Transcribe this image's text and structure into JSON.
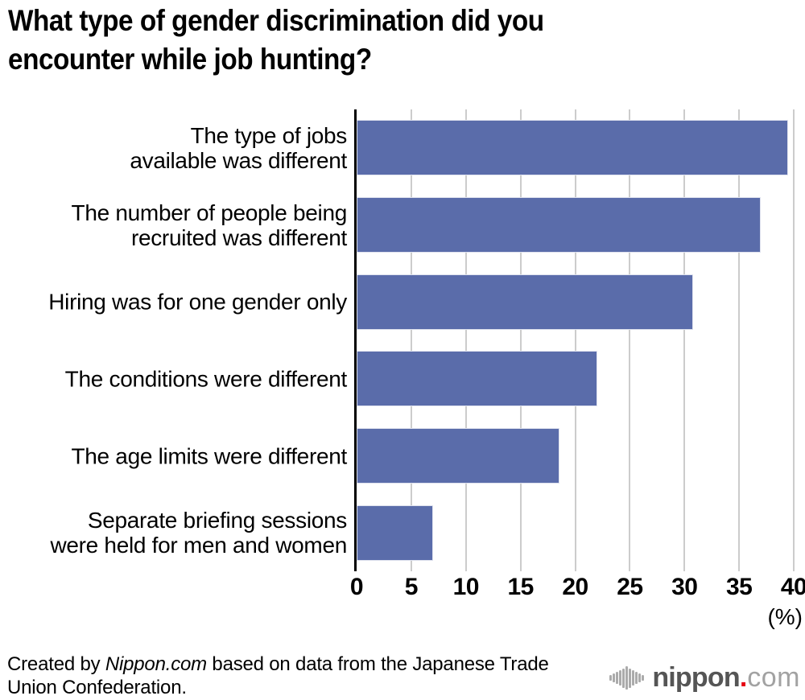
{
  "title": {
    "full": "What type of gender discrimination did you encounter while job hunting?",
    "lines": [
      "What type of gender discrimination did you",
      "encounter while job hunting?"
    ]
  },
  "chart_data": {
    "type": "bar",
    "orientation": "horizontal",
    "title": "What type of gender discrimination did you encounter while job hunting?",
    "categories": [
      "The type of jobs available was different",
      "The number of people being recruited was different",
      "Hiring was for one gender only",
      "The conditions were different",
      "The age limits were different",
      "Separate briefing sessions were held for men and women"
    ],
    "label_lines": [
      [
        "The type of jobs",
        "available was different"
      ],
      [
        "The number of people being",
        "recruited was different"
      ],
      [
        "Hiring was for one gender only"
      ],
      [
        "The conditions were different"
      ],
      [
        "The age limits were different"
      ],
      [
        "Separate briefing sessions",
        "were held for men and women"
      ]
    ],
    "values": [
      39.5,
      37.0,
      30.8,
      22.0,
      18.6,
      7.0
    ],
    "xlabel": "",
    "ylabel": "",
    "xlim": [
      0,
      40
    ],
    "x_ticks": [
      0,
      5,
      10,
      15,
      20,
      25,
      30,
      35,
      40
    ],
    "x_unit_label": "(%)",
    "grid": true,
    "legend": "none",
    "bar_color": "#5a6caa",
    "grid_color": "#cccccc",
    "axis_color": "#000000"
  },
  "footer": {
    "credit_prefix": "Created by ",
    "credit_source": "Nippon.com",
    "credit_suffix": " based on data from the Japanese Trade Union Confederation."
  },
  "logo": {
    "name": "nippon",
    "dot": ".",
    "tld": "com",
    "colors": {
      "name": "#555555",
      "dot": "#e60012",
      "tld": "#a2a2a2",
      "icon": "#ababab"
    }
  }
}
